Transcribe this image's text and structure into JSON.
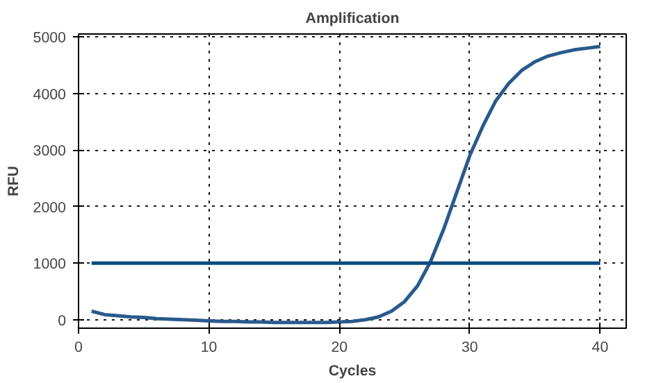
{
  "chart_data": {
    "type": "line",
    "title": "Amplification",
    "xlabel": "Cycles",
    "ylabel": "RFU",
    "x": [
      1,
      2,
      3,
      4,
      5,
      6,
      7,
      8,
      9,
      10,
      11,
      12,
      13,
      14,
      15,
      16,
      17,
      18,
      19,
      20,
      21,
      22,
      23,
      24,
      25,
      26,
      27,
      28,
      29,
      30,
      31,
      32,
      33,
      34,
      35,
      36,
      37,
      38,
      39,
      40
    ],
    "series": [
      {
        "color": "#2a5a8c",
        "values": [
          150,
          90,
          70,
          50,
          40,
          20,
          10,
          0,
          -10,
          -20,
          -30,
          -30,
          -40,
          -40,
          -50,
          -50,
          -50,
          -50,
          -50,
          -40,
          -30,
          0,
          50,
          150,
          320,
          600,
          1030,
          1600,
          2250,
          2900,
          3420,
          3870,
          4180,
          4410,
          4560,
          4660,
          4720,
          4770,
          4800,
          4830
        ]
      }
    ],
    "ref_lines": [
      {
        "axis": "y",
        "value": 1000,
        "color": "#0b4a82"
      }
    ],
    "xlim": [
      0,
      42
    ],
    "ylim": [
      -150,
      5050
    ],
    "xticks": [
      0,
      10,
      20,
      30,
      40
    ],
    "yticks": [
      0,
      1000,
      2000,
      3000,
      4000,
      5000
    ],
    "grid": true,
    "marker": "none",
    "line_style": "solid"
  }
}
